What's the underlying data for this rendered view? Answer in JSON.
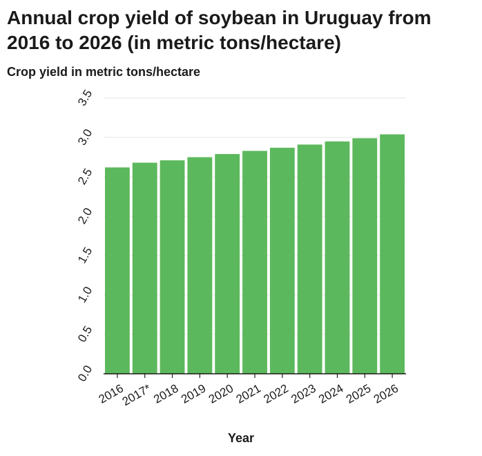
{
  "chart_data": {
    "type": "bar",
    "title": "Annual crop yield of soybean in Uruguay from 2016 to 2026 (in metric tons/hectare)",
    "xlabel": "Year",
    "ylabel": "Crop yield in metric tons/hectare",
    "categories": [
      "2016",
      "2017*",
      "2018",
      "2019",
      "2020",
      "2021",
      "2022",
      "2023",
      "2024",
      "2025",
      "2026"
    ],
    "values": [
      2.62,
      2.68,
      2.71,
      2.75,
      2.79,
      2.83,
      2.87,
      2.91,
      2.95,
      2.99,
      3.04
    ],
    "ylim": [
      0,
      3.5
    ],
    "yticks": [
      "0.0",
      "0.5",
      "1.0",
      "1.5",
      "2.0",
      "2.5",
      "3.0",
      "3.5"
    ],
    "grid": true,
    "bar_color": "#5cb85c",
    "grid_color": "#e6e6e6",
    "axis_color": "#1a1a1a"
  }
}
